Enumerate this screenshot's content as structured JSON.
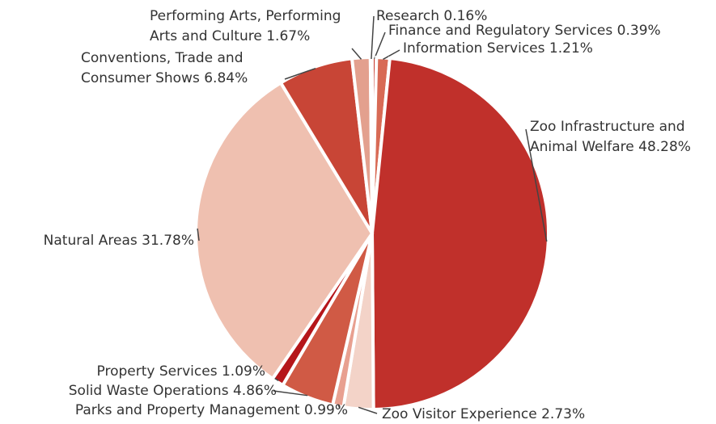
{
  "chart_data": {
    "type": "pie",
    "categories": [
      "Finance and Regulatory Services",
      "Information Services",
      "Zoo Infrastructure and Animal Welfare",
      "Zoo Visitor Experience",
      "Parks and Property Management",
      "Solid Waste Operations",
      "Property Services",
      "Natural Areas",
      "Conventions, Trade and Consumer Shows",
      "Performing Arts, Performing Arts and Culture",
      "Research"
    ],
    "values": [
      0.39,
      1.21,
      48.28,
      2.73,
      0.99,
      4.86,
      1.09,
      31.78,
      6.84,
      1.67,
      0.16
    ],
    "value_labels": [
      "0.39%",
      "1.21%",
      "48.28%",
      "2.73%",
      "0.99%",
      "4.86%",
      "1.09%",
      "31.78%",
      "6.84%",
      "1.67%",
      "0.16%"
    ],
    "colors": [
      "#c83a2e",
      "#d86a55",
      "#c0302b",
      "#f3d3c8",
      "#e8a090",
      "#d05a45",
      "#b5161a",
      "#efc0b0",
      "#c84536",
      "#e3a08e",
      "#d04030"
    ]
  }
}
